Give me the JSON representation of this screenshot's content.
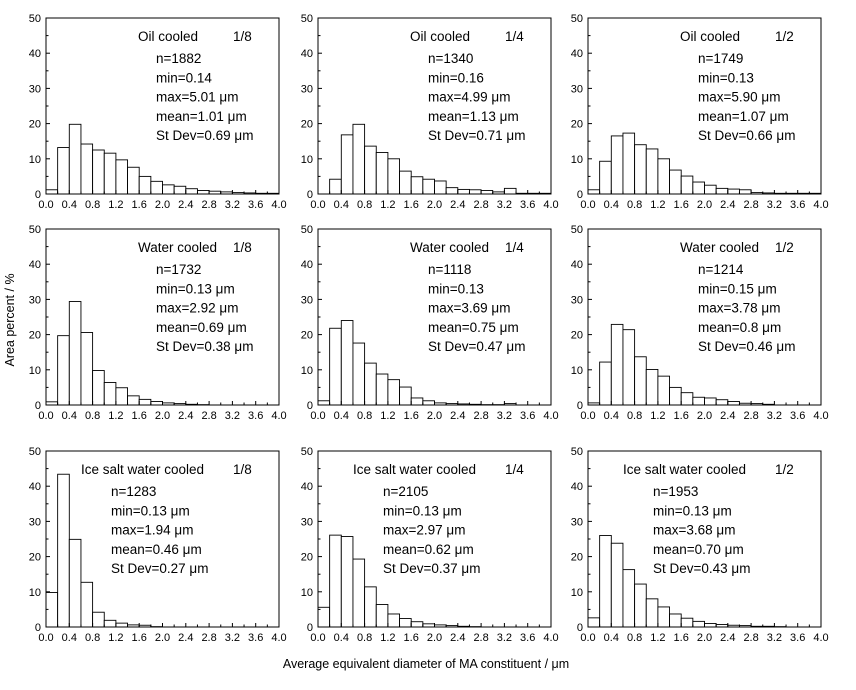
{
  "figure": {
    "ylabel": "Area percent / %",
    "xlabel": "Average equivalent diameter of MA constituent / μm"
  },
  "chart_data": [
    {
      "type": "bar",
      "title": "Oil cooled 1/8",
      "condition": "Oil cooled",
      "position": "1/8",
      "stats": [
        "n=1882",
        "min=0.14",
        "max=5.01 μm",
        "mean=1.01 μm",
        "St Dev=0.69 μm"
      ],
      "bin_width": 0.2,
      "x": [
        0.0,
        0.2,
        0.4,
        0.6,
        0.8,
        1.0,
        1.2,
        1.4,
        1.6,
        1.8,
        2.0,
        2.2,
        2.4,
        2.6,
        2.8,
        3.0,
        3.2,
        3.4,
        3.6,
        3.8
      ],
      "values": [
        1.2,
        13.2,
        19.8,
        14.2,
        12.5,
        11.6,
        9.7,
        7.6,
        5.0,
        3.6,
        2.6,
        2.2,
        1.5,
        1.0,
        0.8,
        0.6,
        0.4,
        0.3,
        0.2,
        0.2
      ],
      "xlim": [
        0,
        4
      ],
      "ylim": [
        0,
        50
      ],
      "xticks": [
        "0.0",
        "0.4",
        "0.8",
        "1.2",
        "1.6",
        "2.0",
        "2.4",
        "2.8",
        "3.2",
        "3.6",
        "4.0"
      ],
      "yticks": [
        "0",
        "10",
        "20",
        "30",
        "40",
        "50"
      ]
    },
    {
      "type": "bar",
      "title": "Oil cooled 1/4",
      "condition": "Oil cooled",
      "position": "1/4",
      "stats": [
        "n=1340",
        "min=0.16",
        "max=4.99 μm",
        "mean=1.13 μm",
        "St Dev=0.71 μm"
      ],
      "bin_width": 0.2,
      "x": [
        0.0,
        0.2,
        0.4,
        0.6,
        0.8,
        1.0,
        1.2,
        1.4,
        1.6,
        1.8,
        2.0,
        2.2,
        2.4,
        2.6,
        2.8,
        3.0,
        3.2,
        3.4,
        3.6,
        3.8
      ],
      "values": [
        0.0,
        4.2,
        16.8,
        19.8,
        13.6,
        11.8,
        10.0,
        6.5,
        4.9,
        4.2,
        3.7,
        1.8,
        1.3,
        1.2,
        1.0,
        0.6,
        1.6,
        0.2,
        0.2,
        0.2
      ],
      "xlim": [
        0,
        4
      ],
      "ylim": [
        0,
        50
      ],
      "xticks": [
        "0.0",
        "0.4",
        "0.8",
        "1.2",
        "1.6",
        "2.0",
        "2.4",
        "2.8",
        "3.2",
        "3.6",
        "4.0"
      ],
      "yticks": [
        "0",
        "10",
        "20",
        "30",
        "40",
        "50"
      ]
    },
    {
      "type": "bar",
      "title": "Oil cooled 1/2",
      "condition": "Oil cooled",
      "position": "1/2",
      "stats": [
        "n=1749",
        "min=0.13",
        "max=5.90 μm",
        "mean=1.07 μm",
        "St Dev=0.66 μm"
      ],
      "bin_width": 0.2,
      "x": [
        0.0,
        0.2,
        0.4,
        0.6,
        0.8,
        1.0,
        1.2,
        1.4,
        1.6,
        1.8,
        2.0,
        2.2,
        2.4,
        2.6,
        2.8,
        3.0,
        3.2,
        3.4,
        3.6,
        3.8
      ],
      "values": [
        1.2,
        9.3,
        16.5,
        17.3,
        14.0,
        12.8,
        10.0,
        6.8,
        5.1,
        3.4,
        2.5,
        1.6,
        1.4,
        1.2,
        0.4,
        0.3,
        0.2,
        0.2,
        0.2,
        0.2
      ],
      "xlim": [
        0,
        4
      ],
      "ylim": [
        0,
        50
      ],
      "xticks": [
        "0.0",
        "0.4",
        "0.8",
        "1.2",
        "1.6",
        "2.0",
        "2.4",
        "2.8",
        "3.2",
        "3.6",
        "4.0"
      ],
      "yticks": [
        "0",
        "10",
        "20",
        "30",
        "40",
        "50"
      ]
    },
    {
      "type": "bar",
      "title": "Water cooled 1/8",
      "condition": "Water cooled",
      "position": "1/8",
      "stats": [
        "n=1732",
        "min=0.13 μm",
        "max=2.92 μm",
        "mean=0.69 μm",
        "St Dev=0.38 μm"
      ],
      "bin_width": 0.2,
      "x": [
        0.0,
        0.2,
        0.4,
        0.6,
        0.8,
        1.0,
        1.2,
        1.4,
        1.6,
        1.8,
        2.0,
        2.2,
        2.4,
        2.6,
        2.8,
        3.0,
        3.2,
        3.4,
        3.6,
        3.8
      ],
      "values": [
        0.9,
        19.7,
        29.4,
        20.6,
        9.8,
        6.4,
        4.9,
        2.6,
        1.6,
        1.0,
        0.6,
        0.4,
        0.2,
        0.1,
        0,
        0,
        0,
        0,
        0,
        0
      ],
      "xlim": [
        0,
        4
      ],
      "ylim": [
        0,
        50
      ],
      "xticks": [
        "0.0",
        "0.4",
        "0.8",
        "1.2",
        "1.6",
        "2.0",
        "2.4",
        "2.8",
        "3.2",
        "3.6",
        "4.0"
      ],
      "yticks": [
        "0",
        "10",
        "20",
        "30",
        "40",
        "50"
      ]
    },
    {
      "type": "bar",
      "title": "Water cooled 1/4",
      "condition": "Water cooled",
      "position": "1/4",
      "stats": [
        "n=1118",
        "min=0.13",
        "max=3.69 μm",
        "mean=0.75 μm",
        "St Dev=0.47 μm"
      ],
      "bin_width": 0.2,
      "x": [
        0.0,
        0.2,
        0.4,
        0.6,
        0.8,
        1.0,
        1.2,
        1.4,
        1.6,
        1.8,
        2.0,
        2.2,
        2.4,
        2.6,
        2.8,
        3.0,
        3.2,
        3.4,
        3.6,
        3.8
      ],
      "values": [
        1.2,
        21.8,
        24.0,
        17.6,
        11.9,
        8.8,
        7.2,
        5.1,
        2.0,
        1.2,
        0.6,
        0.4,
        0.3,
        0.2,
        0.1,
        0.1,
        0.4,
        0,
        0,
        0
      ],
      "xlim": [
        0,
        4
      ],
      "ylim": [
        0,
        50
      ],
      "xticks": [
        "0.0",
        "0.4",
        "0.8",
        "1.2",
        "1.6",
        "2.0",
        "2.4",
        "2.8",
        "3.2",
        "3.6",
        "4.0"
      ],
      "yticks": [
        "0",
        "10",
        "20",
        "30",
        "40",
        "50"
      ]
    },
    {
      "type": "bar",
      "title": "Water cooled 1/2",
      "condition": "Water cooled",
      "position": "1/2",
      "stats": [
        "n=1214",
        "min=0.15 μm",
        "max=3.78 μm",
        "mean=0.8 μm",
        "St Dev=0.46 μm"
      ],
      "bin_width": 0.2,
      "x": [
        0.0,
        0.2,
        0.4,
        0.6,
        0.8,
        1.0,
        1.2,
        1.4,
        1.6,
        1.8,
        2.0,
        2.2,
        2.4,
        2.6,
        2.8,
        3.0,
        3.2,
        3.4,
        3.6,
        3.8
      ],
      "values": [
        0.6,
        12.2,
        22.9,
        21.4,
        13.7,
        10.1,
        8.2,
        5.0,
        3.5,
        2.2,
        2.0,
        1.5,
        1.0,
        0.5,
        0.4,
        0.2,
        0,
        0,
        0,
        0
      ],
      "xlim": [
        0,
        4
      ],
      "ylim": [
        0,
        50
      ],
      "xticks": [
        "0.0",
        "0.4",
        "0.8",
        "1.2",
        "1.6",
        "2.0",
        "2.4",
        "2.8",
        "3.2",
        "3.6",
        "4.0"
      ],
      "yticks": [
        "0",
        "10",
        "20",
        "30",
        "40",
        "50"
      ]
    },
    {
      "type": "bar",
      "title": "Ice salt water cooled 1/8",
      "condition": "Ice salt water cooled",
      "position": "1/8",
      "stats": [
        "n=1283",
        "min=0.13 μm",
        "max=1.94 μm",
        "mean=0.46 μm",
        "St Dev=0.27 μm"
      ],
      "bin_width": 0.2,
      "x": [
        0.0,
        0.2,
        0.4,
        0.6,
        0.8,
        1.0,
        1.2,
        1.4,
        1.6,
        1.8,
        2.0,
        2.2,
        2.4,
        2.6,
        2.8,
        3.0,
        3.2,
        3.4,
        3.6,
        3.8
      ],
      "values": [
        9.8,
        43.4,
        24.9,
        12.7,
        4.2,
        1.9,
        1.1,
        0.6,
        0.5,
        0.1,
        0,
        0,
        0,
        0,
        0,
        0,
        0,
        0,
        0,
        0
      ],
      "xlim": [
        0,
        4
      ],
      "ylim": [
        0,
        50
      ],
      "xticks": [
        "0.0",
        "0.4",
        "0.8",
        "1.2",
        "1.6",
        "2.0",
        "2.4",
        "2.8",
        "3.2",
        "3.6",
        "4.0"
      ],
      "yticks": [
        "0",
        "10",
        "20",
        "30",
        "40",
        "50"
      ]
    },
    {
      "type": "bar",
      "title": "Ice salt water cooled 1/4",
      "condition": "Ice salt water cooled",
      "position": "1/4",
      "stats": [
        "n=2105",
        "min=0.13 μm",
        "max=2.97 μm",
        "mean=0.62 μm",
        "St Dev=0.37 μm"
      ],
      "bin_width": 0.2,
      "x": [
        0.0,
        0.2,
        0.4,
        0.6,
        0.8,
        1.0,
        1.2,
        1.4,
        1.6,
        1.8,
        2.0,
        2.2,
        2.4,
        2.6,
        2.8,
        3.0,
        3.2,
        3.4,
        3.6,
        3.8
      ],
      "values": [
        5.6,
        26.1,
        25.7,
        19.3,
        11.4,
        6.4,
        3.7,
        2.4,
        1.5,
        0.9,
        0.6,
        0.4,
        0.2,
        0.1,
        0,
        0,
        0,
        0,
        0,
        0
      ],
      "xlim": [
        0,
        4
      ],
      "ylim": [
        0,
        50
      ],
      "xticks": [
        "0.0",
        "0.4",
        "0.8",
        "1.2",
        "1.6",
        "2.0",
        "2.4",
        "2.8",
        "3.2",
        "3.6",
        "4.0"
      ],
      "yticks": [
        "0",
        "10",
        "20",
        "30",
        "40",
        "50"
      ]
    },
    {
      "type": "bar",
      "title": "Ice salt water cooled 1/2",
      "condition": "Ice salt water cooled",
      "position": "1/2",
      "stats": [
        "n=1953",
        "min=0.13 μm",
        "max=3.68 μm",
        "mean=0.70 μm",
        "St Dev=0.43 μm"
      ],
      "bin_width": 0.2,
      "x": [
        0.0,
        0.2,
        0.4,
        0.6,
        0.8,
        1.0,
        1.2,
        1.4,
        1.6,
        1.8,
        2.0,
        2.2,
        2.4,
        2.6,
        2.8,
        3.0,
        3.2,
        3.4,
        3.6,
        3.8
      ],
      "values": [
        2.6,
        26.0,
        23.8,
        16.3,
        12.2,
        8.0,
        5.7,
        3.7,
        2.5,
        1.6,
        1.0,
        0.7,
        0.5,
        0.4,
        0.2,
        0.2,
        0.1,
        0,
        0,
        0
      ],
      "xlim": [
        0,
        4
      ],
      "ylim": [
        0,
        50
      ],
      "xticks": [
        "0.0",
        "0.4",
        "0.8",
        "1.2",
        "1.6",
        "2.0",
        "2.4",
        "2.8",
        "3.2",
        "3.6",
        "4.0"
      ],
      "yticks": [
        "0",
        "10",
        "20",
        "30",
        "40",
        "50"
      ]
    }
  ]
}
